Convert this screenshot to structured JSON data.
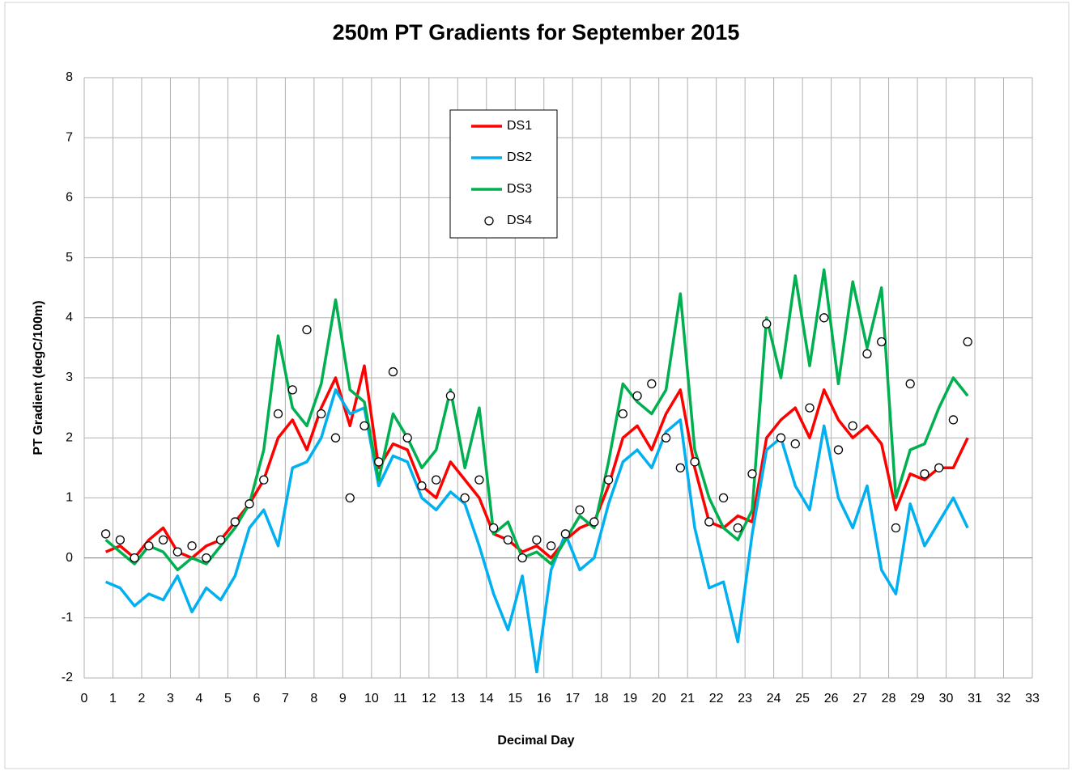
{
  "chart_data": {
    "type": "line",
    "title": "250m PT Gradients for September 2015",
    "x_label": "Decimal Day",
    "y_label": "PT Gradient (degC/100m)",
    "x": [
      0.75,
      1.25,
      1.75,
      2.25,
      2.75,
      3.25,
      3.75,
      4.25,
      4.75,
      5.25,
      5.75,
      6.25,
      6.75,
      7.25,
      7.75,
      8.25,
      8.75,
      9.25,
      9.75,
      10.25,
      10.75,
      11.25,
      11.75,
      12.25,
      12.75,
      13.25,
      13.75,
      14.25,
      14.75,
      15.25,
      15.75,
      16.25,
      16.75,
      17.25,
      17.75,
      18.25,
      18.75,
      19.25,
      19.75,
      20.25,
      20.75,
      21.25,
      21.75,
      22.25,
      22.75,
      23.25,
      23.75,
      24.25,
      24.75,
      25.25,
      25.75,
      26.25,
      26.75,
      27.25,
      27.75,
      28.25,
      28.75,
      29.25,
      29.75,
      30.25,
      30.75
    ],
    "series": [
      {
        "name": "DS1",
        "color": "#ff0000",
        "mode": "line",
        "values": [
          0.1,
          0.2,
          0.0,
          0.3,
          0.5,
          0.1,
          0.0,
          0.2,
          0.3,
          0.6,
          0.9,
          1.3,
          2.0,
          2.3,
          1.8,
          2.5,
          3.0,
          2.2,
          3.2,
          1.5,
          1.9,
          1.8,
          1.2,
          1.0,
          1.6,
          1.3,
          1.0,
          0.4,
          0.3,
          0.1,
          0.2,
          0.0,
          0.3,
          0.5,
          0.6,
          1.2,
          2.0,
          2.2,
          1.8,
          2.4,
          2.8,
          1.5,
          0.6,
          0.5,
          0.7,
          0.6,
          2.0,
          2.3,
          2.5,
          2.0,
          2.8,
          2.3,
          2.0,
          2.2,
          1.9,
          0.8,
          1.4,
          1.3,
          1.5,
          1.5,
          2.0
        ]
      },
      {
        "name": "DS2",
        "color": "#00b0f0",
        "mode": "line",
        "values": [
          -0.4,
          -0.5,
          -0.8,
          -0.6,
          -0.7,
          -0.3,
          -0.9,
          -0.5,
          -0.7,
          -0.3,
          0.5,
          0.8,
          0.2,
          1.5,
          1.6,
          2.0,
          2.8,
          2.4,
          2.5,
          1.2,
          1.7,
          1.6,
          1.0,
          0.8,
          1.1,
          0.9,
          0.2,
          -0.6,
          -1.2,
          -0.3,
          -1.9,
          -0.2,
          0.4,
          -0.2,
          0.0,
          0.9,
          1.6,
          1.8,
          1.5,
          2.1,
          2.3,
          0.5,
          -0.5,
          -0.4,
          -1.4,
          0.4,
          1.8,
          2.0,
          1.2,
          0.8,
          2.2,
          1.0,
          0.5,
          1.2,
          -0.2,
          -0.6,
          0.9,
          0.2,
          0.6,
          1.0,
          0.5
        ]
      },
      {
        "name": "DS3",
        "color": "#00b050",
        "mode": "line",
        "values": [
          0.3,
          0.1,
          -0.1,
          0.2,
          0.1,
          -0.2,
          0.0,
          -0.1,
          0.2,
          0.5,
          0.9,
          1.8,
          3.7,
          2.5,
          2.2,
          2.9,
          4.3,
          2.8,
          2.6,
          1.3,
          2.4,
          2.0,
          1.5,
          1.8,
          2.8,
          1.5,
          2.5,
          0.4,
          0.6,
          0.0,
          0.1,
          -0.1,
          0.3,
          0.7,
          0.5,
          1.6,
          2.9,
          2.6,
          2.4,
          2.8,
          4.4,
          1.8,
          1.0,
          0.5,
          0.3,
          0.8,
          4.0,
          3.0,
          4.7,
          3.2,
          4.8,
          2.9,
          4.6,
          3.5,
          4.5,
          1.0,
          1.8,
          1.9,
          2.5,
          3.0,
          2.7
        ]
      },
      {
        "name": "DS4",
        "color": "#000000",
        "mode": "marker",
        "values": [
          0.4,
          0.3,
          0.0,
          0.2,
          0.3,
          0.1,
          0.2,
          0.0,
          0.3,
          0.6,
          0.9,
          1.3,
          2.4,
          2.8,
          3.8,
          2.4,
          2.0,
          1.0,
          2.2,
          1.6,
          3.1,
          2.0,
          1.2,
          1.3,
          2.7,
          1.0,
          1.3,
          0.5,
          0.3,
          0.0,
          0.3,
          0.2,
          0.4,
          0.8,
          0.6,
          1.3,
          2.4,
          2.7,
          2.9,
          2.0,
          1.5,
          1.6,
          0.6,
          1.0,
          0.5,
          1.4,
          3.9,
          2.0,
          1.9,
          2.5,
          4.0,
          1.8,
          2.2,
          3.4,
          3.6,
          0.5,
          2.9,
          1.4,
          1.5,
          2.3,
          3.6
        ]
      }
    ],
    "xlim": [
      0,
      33
    ],
    "xticks": [
      0,
      1,
      2,
      3,
      4,
      5,
      6,
      7,
      8,
      9,
      10,
      11,
      12,
      13,
      14,
      15,
      16,
      17,
      18,
      19,
      20,
      21,
      22,
      23,
      24,
      25,
      26,
      27,
      28,
      29,
      30,
      31,
      32,
      33
    ],
    "ylim": [
      -2,
      8
    ],
    "yticks": [
      -2,
      -1,
      0,
      1,
      2,
      3,
      4,
      5,
      6,
      7,
      8
    ],
    "grid": true,
    "legend": "top"
  }
}
